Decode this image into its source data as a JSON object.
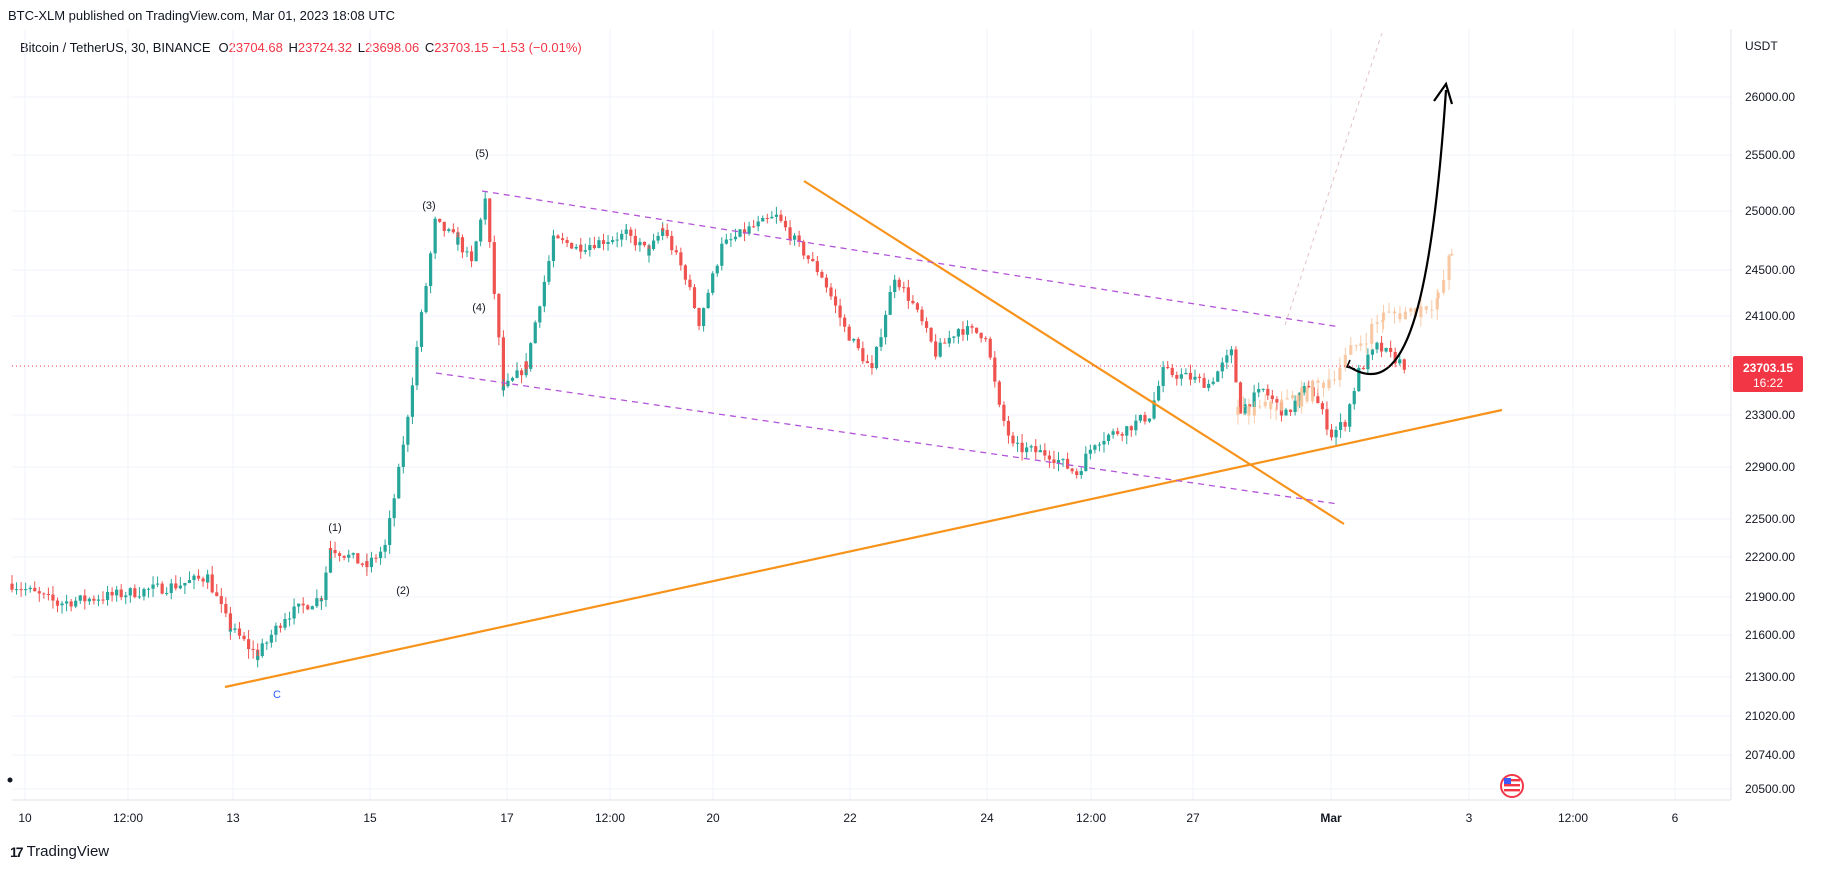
{
  "header": {
    "published": "BTC-XLM published on TradingView.com, Mar 01, 2023 18:08 UTC"
  },
  "legend": {
    "symbol": "Bitcoin / TetherUS, 30, BINANCE",
    "o_label": "O",
    "o_value": "23704.68",
    "h_label": "H",
    "h_value": "23724.32",
    "l_label": "L",
    "l_value": "23698.06",
    "c_label": "C",
    "c_value": "23703.15",
    "change": "−1.53 (−0.01%)"
  },
  "footer": {
    "brand": "TradingView"
  },
  "colors": {
    "up": "#26a69a",
    "down": "#ef5350",
    "trendline": "#f7931a",
    "channel": "#b455d9",
    "projection": "#f7c39b",
    "price_tag": "#f23645",
    "wave_c": "#2962ff"
  },
  "chart_data": {
    "type": "candlestick",
    "currency": "USDT",
    "y_ticks": [
      "26000.00",
      "25500.00",
      "25000.00",
      "24500.00",
      "24100.00",
      "23300.00",
      "22900.00",
      "22500.00",
      "22200.00",
      "21900.00",
      "21600.00",
      "21300.00",
      "21020.00",
      "20740.00",
      "20500.00"
    ],
    "x_ticks": [
      "10",
      "12:00",
      "13",
      "15",
      "17",
      "12:00",
      "20",
      "22",
      "24",
      "12:00",
      "27",
      "Mar",
      "3",
      "12:00",
      "6"
    ],
    "last_price": "23703.15",
    "countdown": "16:22",
    "wave_labels": [
      "(1)",
      "(2)",
      "(3)",
      "(4)",
      "(5)",
      "C"
    ],
    "path_points": [
      {
        "t": 0.0,
        "p": 22000
      },
      {
        "t": 1.0,
        "p": 21850
      },
      {
        "t": 2.0,
        "p": 21900
      },
      {
        "t": 3.5,
        "p": 21980
      },
      {
        "t": 4.3,
        "p": 22050
      },
      {
        "t": 4.8,
        "p": 21650
      },
      {
        "t": 5.4,
        "p": 21450
      },
      {
        "t": 6.0,
        "p": 21750
      },
      {
        "t": 6.8,
        "p": 21900
      },
      {
        "t": 7.0,
        "p": 22280
      },
      {
        "t": 7.8,
        "p": 22130
      },
      {
        "t": 8.2,
        "p": 22280
      },
      {
        "t": 8.6,
        "p": 23050
      },
      {
        "t": 9.0,
        "p": 24100
      },
      {
        "t": 9.3,
        "p": 24900
      },
      {
        "t": 9.8,
        "p": 24750
      },
      {
        "t": 10.1,
        "p": 24550
      },
      {
        "t": 10.4,
        "p": 25100
      },
      {
        "t": 10.8,
        "p": 23500
      },
      {
        "t": 11.3,
        "p": 23700
      },
      {
        "t": 11.9,
        "p": 24750
      },
      {
        "t": 12.5,
        "p": 24700
      },
      {
        "t": 13.5,
        "p": 24800
      },
      {
        "t": 14.0,
        "p": 24650
      },
      {
        "t": 14.3,
        "p": 24850
      },
      {
        "t": 14.8,
        "p": 24450
      },
      {
        "t": 15.1,
        "p": 24050
      },
      {
        "t": 15.6,
        "p": 24700
      },
      {
        "t": 16.2,
        "p": 24850
      },
      {
        "t": 16.8,
        "p": 24950
      },
      {
        "t": 17.3,
        "p": 24700
      },
      {
        "t": 17.8,
        "p": 24450
      },
      {
        "t": 18.3,
        "p": 24000
      },
      {
        "t": 18.9,
        "p": 23650
      },
      {
        "t": 19.4,
        "p": 24450
      },
      {
        "t": 19.8,
        "p": 24200
      },
      {
        "t": 20.3,
        "p": 23800
      },
      {
        "t": 20.8,
        "p": 24000
      },
      {
        "t": 21.4,
        "p": 23950
      },
      {
        "t": 21.7,
        "p": 23350
      },
      {
        "t": 22.0,
        "p": 23050
      },
      {
        "t": 22.8,
        "p": 23000
      },
      {
        "t": 23.4,
        "p": 22850
      },
      {
        "t": 23.8,
        "p": 23100
      },
      {
        "t": 24.5,
        "p": 23200
      },
      {
        "t": 25.0,
        "p": 23300
      },
      {
        "t": 25.3,
        "p": 23650
      },
      {
        "t": 25.9,
        "p": 23600
      },
      {
        "t": 26.3,
        "p": 23550
      },
      {
        "t": 26.8,
        "p": 23800
      },
      {
        "t": 27.0,
        "p": 23350
      },
      {
        "t": 27.5,
        "p": 23500
      },
      {
        "t": 28.0,
        "p": 23300
      },
      {
        "t": 28.5,
        "p": 23550
      },
      {
        "t": 29.0,
        "p": 23150
      },
      {
        "t": 29.3,
        "p": 23250
      },
      {
        "t": 29.6,
        "p": 23650
      },
      {
        "t": 30.0,
        "p": 23850
      },
      {
        "t": 30.6,
        "p": 23703.15
      }
    ],
    "projection_points": [
      {
        "t": 26.9,
        "p": 23300
      },
      {
        "t": 27.5,
        "p": 23350
      },
      {
        "t": 28.3,
        "p": 23450
      },
      {
        "t": 28.9,
        "p": 23600
      },
      {
        "t": 29.6,
        "p": 23900
      },
      {
        "t": 30.1,
        "p": 24100
      },
      {
        "t": 30.8,
        "p": 24150
      },
      {
        "t": 31.3,
        "p": 24250
      },
      {
        "t": 31.6,
        "p": 24650
      }
    ]
  }
}
